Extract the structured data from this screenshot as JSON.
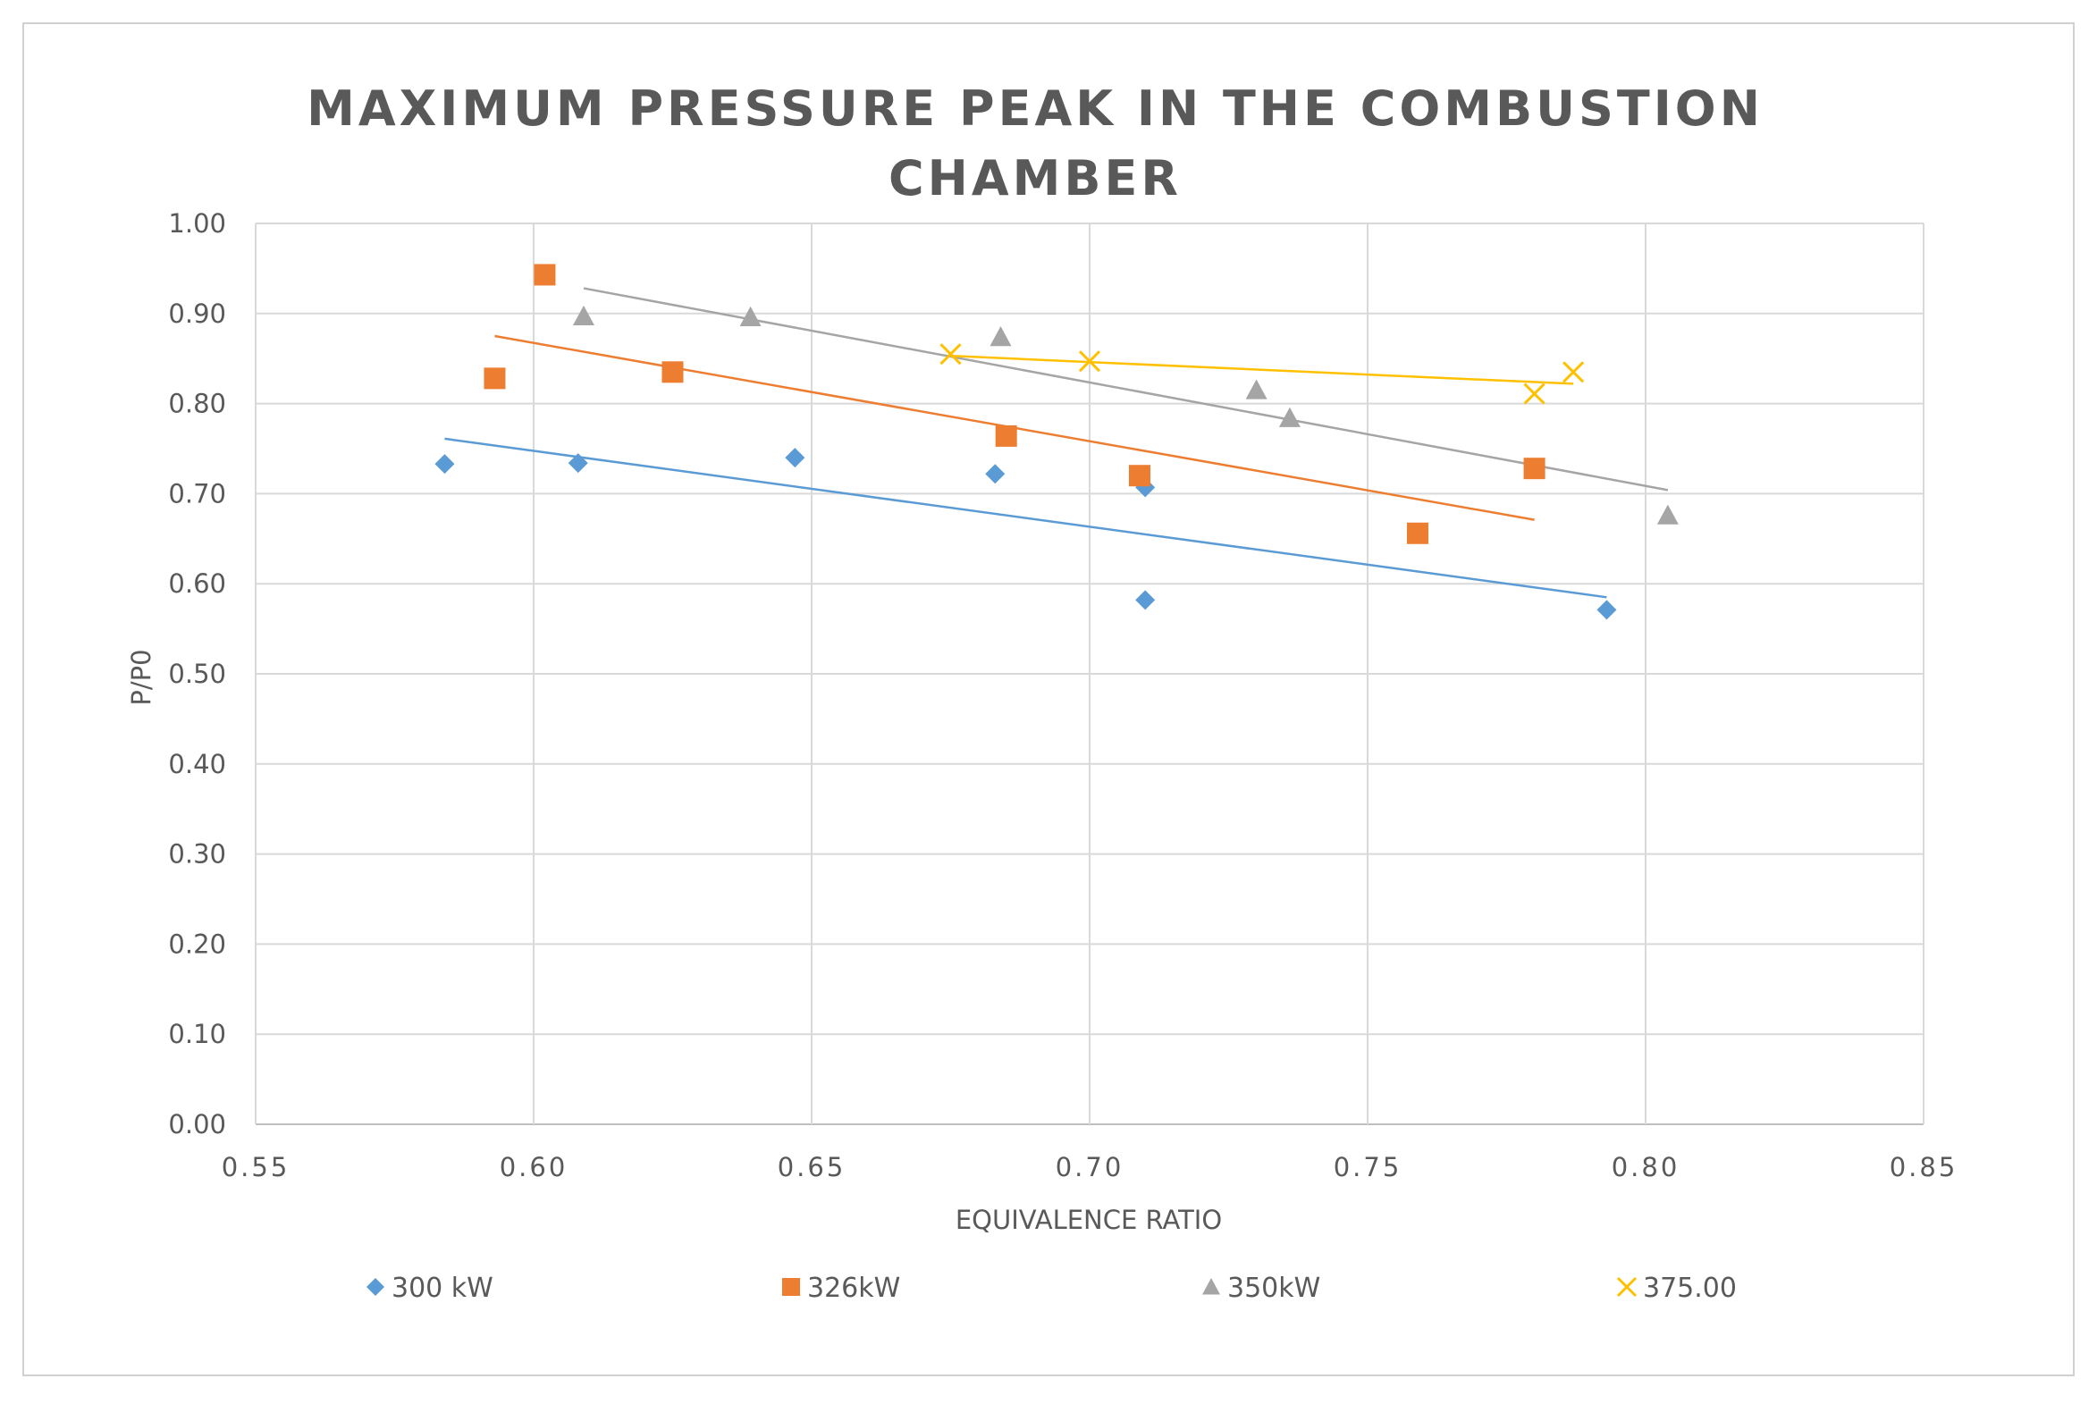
{
  "chart_data": {
    "type": "scatter",
    "title_lines": [
      "MAXIMUM PRESSURE PEAK IN THE COMBUSTION",
      "CHAMBER"
    ],
    "xlabel": "EQUIVALENCE RATIO",
    "ylabel": "P/P0",
    "xlim": [
      0.55,
      0.85
    ],
    "ylim": [
      0.0,
      1.0
    ],
    "x_ticks": [
      "0.55",
      "0.60",
      "0.65",
      "0.70",
      "0.75",
      "0.80",
      "0.85"
    ],
    "x_tick_values": [
      0.55,
      0.6,
      0.65,
      0.7,
      0.75,
      0.8,
      0.85
    ],
    "y_ticks": [
      "0.00",
      "0.10",
      "0.20",
      "0.30",
      "0.40",
      "0.50",
      "0.60",
      "0.70",
      "0.80",
      "0.90",
      "1.00"
    ],
    "y_tick_values": [
      0.0,
      0.1,
      0.2,
      0.3,
      0.4,
      0.5,
      0.6,
      0.7,
      0.8,
      0.9,
      1.0
    ],
    "grid": true,
    "legend_position": "bottom",
    "series": [
      {
        "name": "300 kW",
        "marker": "diamond",
        "color": "#5B9BD5",
        "x": [
          0.584,
          0.608,
          0.647,
          0.683,
          0.71,
          0.71,
          0.793
        ],
        "y": [
          0.733,
          0.734,
          0.74,
          0.722,
          0.707,
          0.582,
          0.571
        ],
        "trendline": {
          "x": [
            0.584,
            0.793
          ],
          "y": [
            0.761,
            0.585
          ]
        }
      },
      {
        "name": "326kW",
        "marker": "square",
        "color": "#ED7D31",
        "x": [
          0.593,
          0.602,
          0.625,
          0.685,
          0.709,
          0.759,
          0.78
        ],
        "y": [
          0.828,
          0.943,
          0.835,
          0.764,
          0.72,
          0.656,
          0.728
        ],
        "trendline": {
          "x": [
            0.593,
            0.78
          ],
          "y": [
            0.875,
            0.671
          ]
        }
      },
      {
        "name": "350kW",
        "marker": "triangle",
        "color": "#A5A5A5",
        "x": [
          0.609,
          0.639,
          0.684,
          0.73,
          0.736,
          0.804
        ],
        "y": [
          0.897,
          0.896,
          0.874,
          0.815,
          0.784,
          0.676
        ],
        "trendline": {
          "x": [
            0.609,
            0.804
          ],
          "y": [
            0.928,
            0.704
          ]
        }
      },
      {
        "name": "375.00",
        "marker": "x",
        "color": "#FFC000",
        "x": [
          0.675,
          0.7,
          0.78,
          0.787
        ],
        "y": [
          0.855,
          0.847,
          0.811,
          0.835
        ],
        "trendline": {
          "x": [
            0.675,
            0.787
          ],
          "y": [
            0.853,
            0.822
          ]
        }
      }
    ]
  }
}
